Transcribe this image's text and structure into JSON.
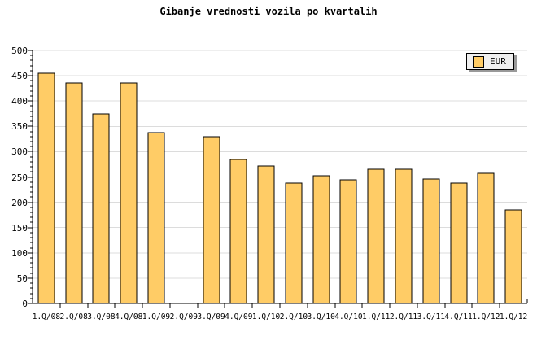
{
  "chart_data": {
    "type": "bar",
    "title": "Gibanje vrednosti vozila po kvartalih",
    "categories": [
      "1.Q/08",
      "2.Q/08",
      "3.Q/08",
      "4.Q/08",
      "1.Q/09",
      "2.Q/09",
      "3.Q/09",
      "4.Q/09",
      "1.Q/10",
      "2.Q/10",
      "3.Q/10",
      "4.Q/10",
      "1.Q/11",
      "2.Q/11",
      "3.Q/11",
      "4.Q/11",
      "1.Q/12",
      "1.Q/12"
    ],
    "series": [
      {
        "name": "EUR",
        "values": [
          455,
          435,
          375,
          435,
          337,
          0,
          330,
          285,
          271,
          238,
          252,
          244,
          266,
          266,
          246,
          238,
          257,
          185
        ]
      }
    ],
    "xlabel": "",
    "ylabel": "",
    "ylim": [
      0,
      500
    ],
    "y_ticks": [
      0,
      50,
      100,
      150,
      200,
      250,
      300,
      350,
      400,
      450,
      500
    ],
    "y_minor_step": 10,
    "grid": true,
    "legend_position": "top-right",
    "colors": {
      "bar_fill": "#ffcc66",
      "bar_border": "#000000",
      "grid": "#dcdcdc",
      "axis": "#000000",
      "text": "#000000",
      "legend_bg": "#efefef",
      "legend_shadow": "#999999",
      "background": "#ffffff"
    }
  }
}
